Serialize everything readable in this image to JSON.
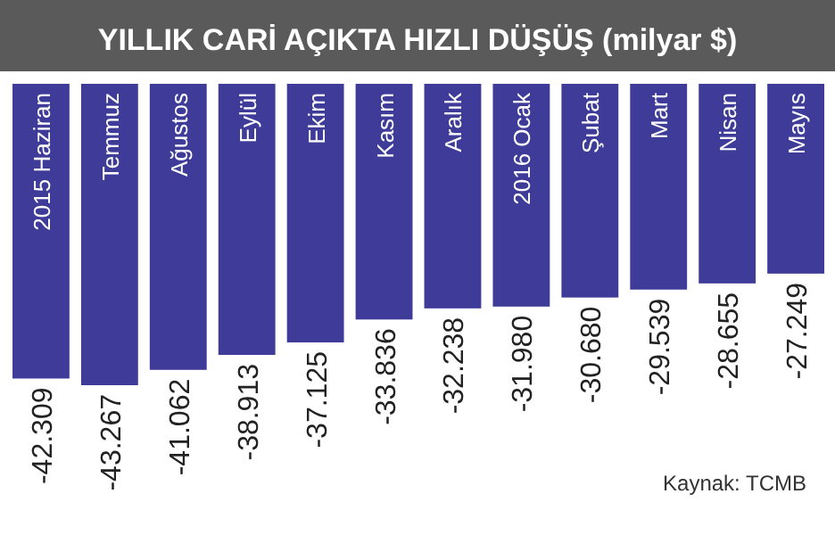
{
  "chart_data": {
    "type": "bar",
    "title": "YILLIK CARİ AÇIKTA HIZLI DÜŞÜŞ (milyar $)",
    "categories": [
      "2015 Haziran",
      "Temmuz",
      "Ağustos",
      "Eylül",
      "Ekim",
      "Kasım",
      "Aralık",
      "2016 Ocak",
      "Şubat",
      "Mart",
      "Nisan",
      "Mayıs"
    ],
    "values": [
      -42.309,
      -43.267,
      -41.062,
      -38.913,
      -37.125,
      -33.836,
      -32.238,
      -31.98,
      -30.68,
      -29.539,
      -28.655,
      -27.249
    ],
    "value_labels": [
      "-42.309",
      "-43.267",
      "-41.062",
      "-38.913",
      "-37.125",
      "-33.836",
      "-32.238",
      "-31.980",
      "-30.680",
      "-29.539",
      "-28.655",
      "-27.249"
    ],
    "color": "#3f3c99",
    "annotations": [
      "Kaynak: TCMB"
    ]
  }
}
